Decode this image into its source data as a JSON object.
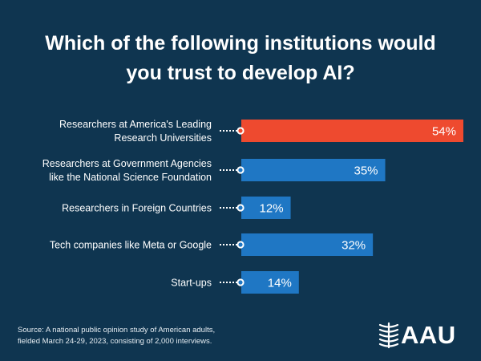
{
  "title_lines": [
    "Which of the following institutions would",
    "you trust to develop AI?"
  ],
  "chart_data": {
    "type": "bar",
    "orientation": "horizontal",
    "title": "Which of the following institutions would you trust to develop AI?",
    "categories": [
      [
        "Researchers at America's Leading",
        "Research Universities"
      ],
      [
        "Researchers at  Government Agencies",
        "like the National Science Foundation"
      ],
      [
        "Researchers in Foreign Countries"
      ],
      [
        "Tech companies like Meta or Google"
      ],
      [
        "Start-ups"
      ]
    ],
    "values": [
      54,
      35,
      12,
      32,
      14
    ],
    "value_labels": [
      "54%",
      "35%",
      "12%",
      "32%",
      "14%"
    ],
    "bar_colors": [
      "#ee4a2f",
      "#1f77c4",
      "#1f77c4",
      "#1f77c4",
      "#1f77c4"
    ],
    "xlim": [
      0,
      54
    ],
    "grid": false,
    "legend": "none"
  },
  "source_lines": [
    "Source:  A national public opinion study of American adults,",
    "fielded March 24-29, 2023, consisting of 2,000 interviews."
  ],
  "logo": {
    "text": "AAU",
    "icon": "aau-emblem-icon"
  },
  "colors": {
    "background": "#0f3550",
    "highlight": "#ee4a2f",
    "bar": "#1f77c4"
  }
}
